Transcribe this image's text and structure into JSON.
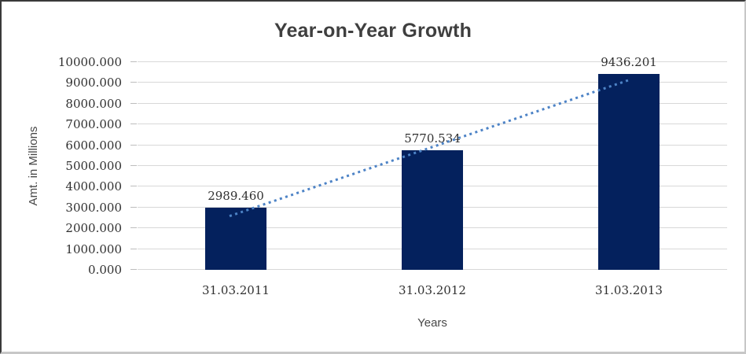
{
  "chart_data": {
    "type": "bar",
    "title": "Year-on-Year Growth",
    "xlabel": "Years",
    "ylabel": "Amt. in Millions",
    "categories": [
      "31.03.2011",
      "31.03.2012",
      "31.03.2013"
    ],
    "values": [
      2989.46,
      5770.534,
      9436.201
    ],
    "data_labels": [
      "2989.460",
      "5770.534",
      "9436.201"
    ],
    "ylim": [
      0,
      10000
    ],
    "y_tick_step": 1000,
    "y_tick_labels": [
      "0.000",
      "1000.000",
      "2000.000",
      "3000.000",
      "4000.000",
      "5000.000",
      "6000.000",
      "7000.000",
      "8000.000",
      "9000.000",
      "10000.000"
    ],
    "grid": "horizontal",
    "legend_position": "none",
    "trendline": {
      "type": "linear",
      "style": "dotted"
    },
    "colors": {
      "bar": "#04215d",
      "trendline": "#4d83c6",
      "gridline": "#d8d8d8",
      "tick_mark": "#bdbdbd",
      "title_text": "#3f3f3f",
      "label_text": "#303030",
      "axis_title_text": "#474747"
    }
  }
}
